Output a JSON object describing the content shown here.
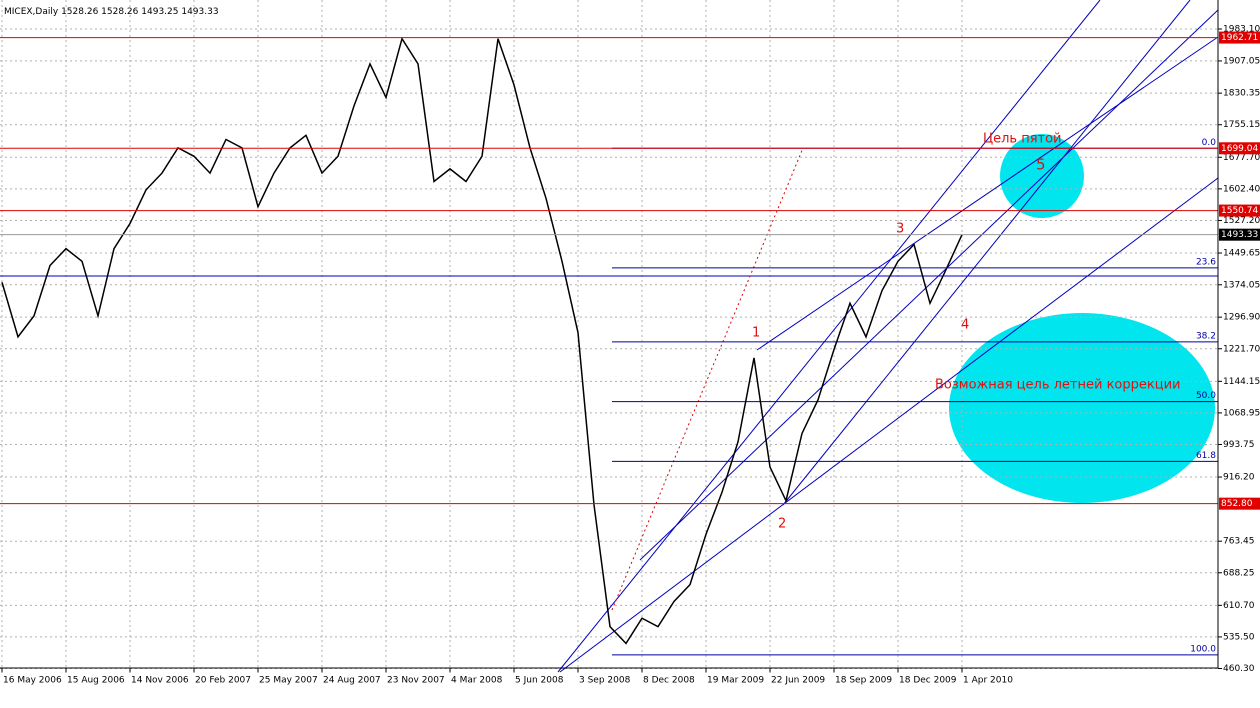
{
  "chart_data": {
    "type": "line",
    "title": "MICEX,Daily",
    "ohlc": [
      1528.26,
      1528.26,
      1493.25,
      1493.33
    ],
    "categories": [
      "16 May 2006",
      null,
      null,
      null,
      "15 Aug 2006",
      null,
      null,
      null,
      "14 Nov 2006",
      null,
      null,
      null,
      "20 Feb 2007",
      null,
      null,
      null,
      "25 May 2007",
      null,
      null,
      null,
      "24 Aug 2007",
      null,
      null,
      null,
      "23 Nov 2007",
      null,
      null,
      null,
      "4 Mar 2008",
      null,
      null,
      null,
      "5 Jun 2008",
      null,
      null,
      null,
      "3 Sep 2008",
      null,
      null,
      null,
      "8 Dec 2008",
      null,
      null,
      null,
      "19 Mar 2009",
      null,
      null,
      null,
      "22 Jun 2009",
      null,
      null,
      null,
      "18 Sep 2009",
      null,
      null,
      null,
      "18 Dec 2009",
      null,
      null,
      null,
      "1 Apr 2010"
    ],
    "series": [
      {
        "name": "MICEX",
        "color": "#000000",
        "values": [
          1380,
          1250,
          1300,
          1420,
          1460,
          1430,
          1300,
          1460,
          1520,
          1600,
          1640,
          1700,
          1680,
          1640,
          1720,
          1700,
          1560,
          1640,
          1700,
          1730,
          1640,
          1680,
          1800,
          1900,
          1820,
          1960,
          1900,
          1620,
          1650,
          1620,
          1680,
          1960,
          1850,
          1700,
          1580,
          1430,
          1260,
          850,
          560,
          520,
          580,
          560,
          620,
          660,
          780,
          880,
          1000,
          1200,
          940,
          860,
          1020,
          1100,
          1220,
          1330,
          1250,
          1360,
          1430,
          1470,
          1330,
          1410,
          1493.33
        ]
      }
    ],
    "ylim": [
      460.3,
      1983.1
    ],
    "yticks": [
      {
        "value": 1983.1,
        "label": "1983.10"
      },
      1907.05,
      1830.35,
      1755.15,
      {
        "value": 1677.7,
        "label": "1677.70"
      },
      {
        "value": 1602.4,
        "label": "1602.40"
      },
      {
        "value": 1527.2,
        "label": "1527.20"
      },
      1449.65,
      1374.05,
      {
        "value": 1296.9,
        "label": "1296.90"
      },
      {
        "value": 1221.7,
        "label": "1221.70"
      },
      1144.15,
      1068.95,
      993.75,
      {
        "value": 916.2,
        "label": "916.20"
      },
      763.45,
      688.25,
      {
        "value": 610.7,
        "label": "610.70"
      },
      {
        "value": 535.5,
        "label": "535.50"
      },
      {
        "value": 460.3,
        "label": "460.30"
      }
    ],
    "levels": [
      {
        "value": 1962.71,
        "label": "1962.71",
        "color": "#e00000"
      },
      {
        "value": 1699.04,
        "label": "1699.04",
        "color": "#e00000"
      },
      {
        "value": 1550.74,
        "label": "1550.74",
        "color": "#e00000"
      },
      {
        "value": 852.8,
        "label": "852.80",
        "color": "#e00000"
      }
    ],
    "price_line": {
      "value": 1493.33,
      "label": "1493.33",
      "color": "#000000"
    },
    "fib_levels": [
      {
        "label": "0.0",
        "price": 1699.04
      },
      {
        "label": "23.6",
        "price": 1414.3
      },
      {
        "label": "38.2",
        "price": 1238.2
      },
      {
        "label": "50.0",
        "price": 1095.8
      },
      {
        "label": "61.8",
        "price": 953.5
      },
      {
        "label": "100.0",
        "price": 492.6
      }
    ],
    "fib_color": "#0000a0",
    "grid": true,
    "annotations": {
      "target5": "Цель пятой",
      "wave5": "5",
      "wave1": "1",
      "wave2": "2",
      "wave3": "3",
      "wave4": "4",
      "correction": "Возможная цель летней коррекции"
    }
  }
}
